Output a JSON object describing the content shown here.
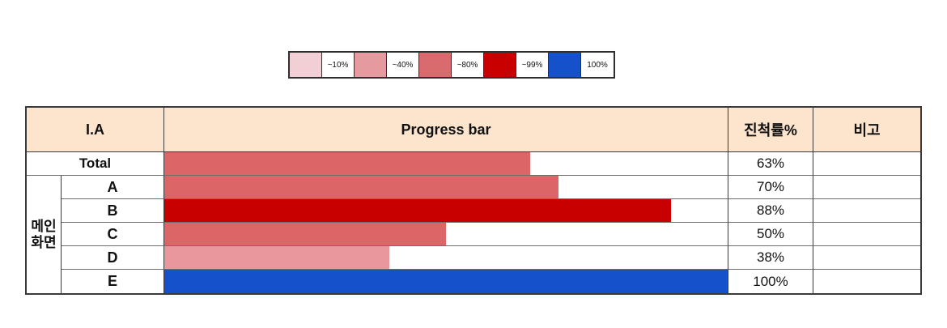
{
  "legend": {
    "items": [
      {
        "label": "~10%",
        "color": "#f2cfd5"
      },
      {
        "label": "~40%",
        "color": "#e59aa0"
      },
      {
        "label": "~80%",
        "color": "#d96a6d"
      },
      {
        "label": "~99%",
        "color": "#c80000"
      },
      {
        "label": "100%",
        "color": "#1551cb"
      }
    ]
  },
  "table": {
    "headers": {
      "ia": "I.A",
      "progress": "Progress bar",
      "rate": "진척률%",
      "remark": "비고"
    },
    "group_label": "메인\n화면",
    "rows": [
      {
        "label": "Total",
        "percent": "63%",
        "bar_percent": 65,
        "bar_color": "#dc6567",
        "remark": ""
      },
      {
        "label": "A",
        "percent": "70%",
        "bar_percent": 70,
        "bar_color": "#dc6567",
        "remark": ""
      },
      {
        "label": "B",
        "percent": "88%",
        "bar_percent": 90,
        "bar_color": "#c80000",
        "remark": ""
      },
      {
        "label": "C",
        "percent": "50%",
        "bar_percent": 50,
        "bar_color": "#dc6567",
        "remark": ""
      },
      {
        "label": "D",
        "percent": "38%",
        "bar_percent": 40,
        "bar_color": "#e8989c",
        "remark": ""
      },
      {
        "label": "E",
        "percent": "100%",
        "bar_percent": 100,
        "bar_color": "#1551cb",
        "remark": ""
      }
    ]
  },
  "colors": {
    "header_bg": "#fce4cd",
    "grid_horizontal": "#6e6e6e",
    "grid_vertical": "#3a3a3a"
  },
  "chart_data": {
    "type": "bar",
    "categories": [
      "Total",
      "A",
      "B",
      "C",
      "D",
      "E"
    ],
    "values": [
      63,
      70,
      88,
      50,
      38,
      100
    ],
    "title": "Progress bar",
    "xlabel": "I.A",
    "ylabel": "진척률%",
    "ylim": [
      0,
      100
    ],
    "legend_bins": [
      "~10%",
      "~40%",
      "~80%",
      "~99%",
      "100%"
    ],
    "group": "메인 화면 (rows A-E)",
    "legend_position": "top-center",
    "grid": false
  }
}
